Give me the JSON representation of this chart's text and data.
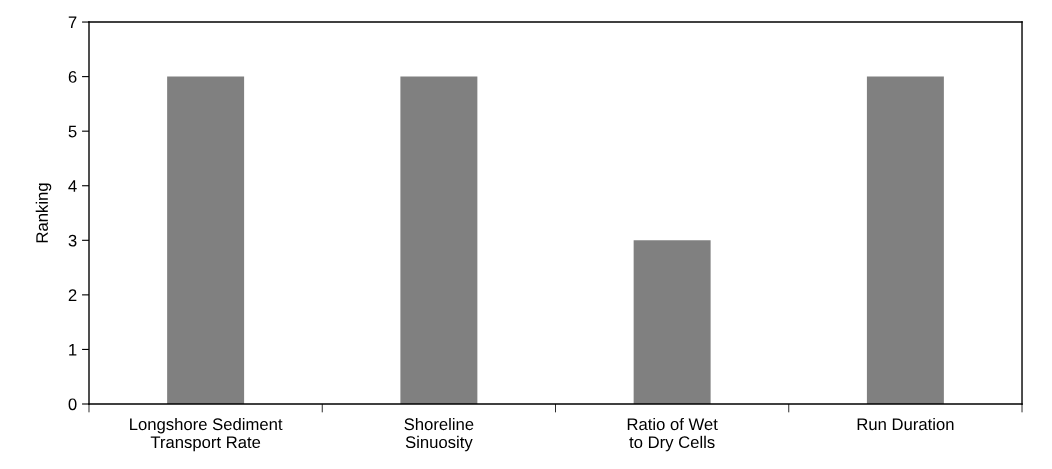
{
  "chart_data": {
    "type": "bar",
    "ylabel": "Ranking",
    "categories": [
      "Longshore Sediment\nTransport Rate",
      "Shoreline\nSinuosity",
      "Ratio of Wet\nto Dry Cells",
      "Run Duration"
    ],
    "values": [
      6,
      6,
      3,
      6
    ],
    "color": "#808080",
    "ylim": [
      0,
      7
    ],
    "yticks": [
      0,
      1,
      2,
      3,
      4,
      5,
      6,
      7
    ],
    "grid": false,
    "legend": false
  }
}
